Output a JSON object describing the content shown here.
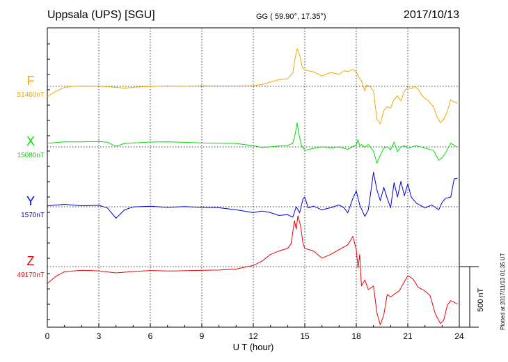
{
  "header": {
    "station": "Uppsala (UPS)  [SGU]",
    "coords": "GG ( 59.90°,  17.35°)",
    "date": "2017/10/13"
  },
  "footer": {
    "plotted": "Plotted at 2017/11/13 01:35 UT"
  },
  "chart_data": {
    "type": "line",
    "xlabel": "U T (hour)",
    "xlim": [
      0,
      24
    ],
    "xticks": [
      "0",
      "3",
      "6",
      "9",
      "12",
      "15",
      "18",
      "21",
      "24"
    ],
    "scale_bar": {
      "label": "500 nT",
      "value_nT": 500
    },
    "grid": true,
    "series": [
      {
        "name": "F",
        "baseline_label": "51460nT",
        "baseline_nT": 51460,
        "color": "#f0a800",
        "points": [
          [
            0,
            51375
          ],
          [
            0.5,
            51420
          ],
          [
            1,
            51450
          ],
          [
            1.5,
            51460
          ],
          [
            2,
            51462
          ],
          [
            3,
            51462
          ],
          [
            4,
            51452
          ],
          [
            4.5,
            51445
          ],
          [
            5,
            51452
          ],
          [
            6,
            51458
          ],
          [
            7,
            51463
          ],
          [
            8,
            51460
          ],
          [
            9,
            51465
          ],
          [
            10,
            51463
          ],
          [
            11,
            51463
          ],
          [
            12,
            51465
          ],
          [
            12.5,
            51475
          ],
          [
            13,
            51495
          ],
          [
            13.5,
            51515
          ],
          [
            14,
            51522
          ],
          [
            14.3,
            51570
          ],
          [
            14.45,
            51700
          ],
          [
            14.55,
            51770
          ],
          [
            14.7,
            51720
          ],
          [
            14.85,
            51620
          ],
          [
            15,
            51595
          ],
          [
            15.5,
            51580
          ],
          [
            16,
            51545
          ],
          [
            16.5,
            51575
          ],
          [
            17,
            51560
          ],
          [
            17.3,
            51590
          ],
          [
            17.5,
            51580
          ],
          [
            17.8,
            51600
          ],
          [
            18,
            51580
          ],
          [
            18.1,
            51550
          ],
          [
            18.2,
            51520
          ],
          [
            18.3,
            51505
          ],
          [
            18.5,
            51420
          ],
          [
            18.6,
            51470
          ],
          [
            18.8,
            51460
          ],
          [
            19,
            51420
          ],
          [
            19.2,
            51190
          ],
          [
            19.4,
            51150
          ],
          [
            19.6,
            51260
          ],
          [
            19.8,
            51290
          ],
          [
            20,
            51280
          ],
          [
            20.2,
            51350
          ],
          [
            20.4,
            51380
          ],
          [
            20.6,
            51340
          ],
          [
            20.8,
            51420
          ],
          [
            21,
            51450
          ],
          [
            21.2,
            51440
          ],
          [
            21.4,
            51460
          ],
          [
            21.6,
            51435
          ],
          [
            21.8,
            51390
          ],
          [
            22,
            51360
          ],
          [
            22.2,
            51340
          ],
          [
            22.5,
            51290
          ],
          [
            22.7,
            51210
          ],
          [
            22.9,
            51160
          ],
          [
            23.1,
            51190
          ],
          [
            23.3,
            51250
          ],
          [
            23.5,
            51350
          ],
          [
            23.7,
            51330
          ],
          [
            23.9,
            51320
          ]
        ]
      },
      {
        "name": "X",
        "baseline_label": "15080nT",
        "baseline_nT": 15080,
        "color": "#00dd00",
        "points": [
          [
            0,
            15110
          ],
          [
            1,
            15122
          ],
          [
            2,
            15122
          ],
          [
            3,
            15125
          ],
          [
            3.5,
            15118
          ],
          [
            4,
            15085
          ],
          [
            4.5,
            15108
          ],
          [
            5,
            15112
          ],
          [
            6,
            15120
          ],
          [
            7,
            15122
          ],
          [
            8,
            15118
          ],
          [
            9,
            15112
          ],
          [
            10,
            15110
          ],
          [
            11,
            15108
          ],
          [
            12,
            15090
          ],
          [
            12.5,
            15075
          ],
          [
            13,
            15080
          ],
          [
            13.5,
            15088
          ],
          [
            14,
            15092
          ],
          [
            14.3,
            15110
          ],
          [
            14.45,
            15190
          ],
          [
            14.55,
            15280
          ],
          [
            14.65,
            15190
          ],
          [
            14.8,
            15090
          ],
          [
            15,
            15050
          ],
          [
            15.5,
            15068
          ],
          [
            16,
            15080
          ],
          [
            16.5,
            15072
          ],
          [
            17,
            15080
          ],
          [
            17.5,
            15060
          ],
          [
            18,
            15098
          ],
          [
            18.1,
            15140
          ],
          [
            18.2,
            15090
          ],
          [
            18.3,
            15100
          ],
          [
            18.5,
            15075
          ],
          [
            18.7,
            15100
          ],
          [
            19,
            15045
          ],
          [
            19.2,
            14945
          ],
          [
            19.4,
            15010
          ],
          [
            19.6,
            15070
          ],
          [
            19.8,
            15080
          ],
          [
            20,
            15055
          ],
          [
            20.2,
            15120
          ],
          [
            20.4,
            15040
          ],
          [
            20.6,
            15080
          ],
          [
            20.8,
            15090
          ],
          [
            21,
            15070
          ],
          [
            21.5,
            15090
          ],
          [
            22,
            15070
          ],
          [
            22.5,
            15050
          ],
          [
            22.8,
            14970
          ],
          [
            23,
            14990
          ],
          [
            23.2,
            15030
          ],
          [
            23.5,
            15110
          ],
          [
            23.8,
            15085
          ],
          [
            23.9,
            15075
          ]
        ]
      },
      {
        "name": "Y",
        "baseline_label": "1570nT",
        "baseline_nT": 1570,
        "color": "#0000dd",
        "points": [
          [
            0,
            1578
          ],
          [
            1,
            1590
          ],
          [
            2,
            1578
          ],
          [
            3,
            1582
          ],
          [
            3.5,
            1560
          ],
          [
            4,
            1475
          ],
          [
            4.5,
            1545
          ],
          [
            5,
            1568
          ],
          [
            6,
            1574
          ],
          [
            7,
            1565
          ],
          [
            8,
            1572
          ],
          [
            9,
            1565
          ],
          [
            10,
            1562
          ],
          [
            11,
            1545
          ],
          [
            12,
            1522
          ],
          [
            12.5,
            1535
          ],
          [
            13,
            1522
          ],
          [
            13.5,
            1498
          ],
          [
            14,
            1505
          ],
          [
            14.3,
            1484
          ],
          [
            14.5,
            1570
          ],
          [
            14.7,
            1520
          ],
          [
            14.9,
            1638
          ],
          [
            15,
            1650
          ],
          [
            15.2,
            1560
          ],
          [
            15.5,
            1575
          ],
          [
            16,
            1545
          ],
          [
            16.5,
            1562
          ],
          [
            17,
            1585
          ],
          [
            17.3,
            1560
          ],
          [
            17.5,
            1520
          ],
          [
            17.8,
            1640
          ],
          [
            18,
            1700
          ],
          [
            18.2,
            1585
          ],
          [
            18.5,
            1490
          ],
          [
            18.7,
            1545
          ],
          [
            19,
            1855
          ],
          [
            19.2,
            1710
          ],
          [
            19.4,
            1620
          ],
          [
            19.6,
            1730
          ],
          [
            19.8,
            1640
          ],
          [
            20,
            1560
          ],
          [
            20.2,
            1770
          ],
          [
            20.4,
            1650
          ],
          [
            20.6,
            1780
          ],
          [
            20.8,
            1660
          ],
          [
            21,
            1760
          ],
          [
            21.2,
            1650
          ],
          [
            21.5,
            1600
          ],
          [
            22,
            1560
          ],
          [
            22.4,
            1585
          ],
          [
            22.8,
            1545
          ],
          [
            23,
            1605
          ],
          [
            23.2,
            1640
          ],
          [
            23.5,
            1650
          ],
          [
            23.7,
            1800
          ],
          [
            23.9,
            1805
          ]
        ]
      },
      {
        "name": "Z",
        "baseline_label": "49170nT",
        "baseline_nT": 49170,
        "color": "#ee0000",
        "points": [
          [
            0,
            49030
          ],
          [
            0.5,
            49090
          ],
          [
            1,
            49128
          ],
          [
            2,
            49140
          ],
          [
            3,
            49135
          ],
          [
            4,
            49118
          ],
          [
            5,
            49130
          ],
          [
            6,
            49138
          ],
          [
            7,
            49134
          ],
          [
            8,
            49136
          ],
          [
            9,
            49140
          ],
          [
            10,
            49142
          ],
          [
            11,
            49150
          ],
          [
            12,
            49180
          ],
          [
            12.5,
            49215
          ],
          [
            13,
            49270
          ],
          [
            13.5,
            49300
          ],
          [
            14,
            49320
          ],
          [
            14.2,
            49360
          ],
          [
            14.4,
            49550
          ],
          [
            14.5,
            49480
          ],
          [
            14.6,
            49590
          ],
          [
            14.75,
            49510
          ],
          [
            14.9,
            49360
          ],
          [
            15,
            49320
          ],
          [
            15.5,
            49300
          ],
          [
            16,
            49240
          ],
          [
            16.5,
            49270
          ],
          [
            17,
            49310
          ],
          [
            17.5,
            49350
          ],
          [
            17.8,
            49420
          ],
          [
            18,
            49310
          ],
          [
            18.1,
            49160
          ],
          [
            18.2,
            49270
          ],
          [
            18.3,
            49010
          ],
          [
            18.5,
            49060
          ],
          [
            18.7,
            48980
          ],
          [
            19,
            49010
          ],
          [
            19.2,
            48790
          ],
          [
            19.4,
            48690
          ],
          [
            19.6,
            48770
          ],
          [
            19.8,
            48940
          ],
          [
            20,
            48920
          ],
          [
            20.5,
            48970
          ],
          [
            21,
            49095
          ],
          [
            21.3,
            49070
          ],
          [
            21.6,
            49000
          ],
          [
            22,
            48970
          ],
          [
            22.3,
            48930
          ],
          [
            22.6,
            48780
          ],
          [
            22.9,
            48700
          ],
          [
            23.1,
            48730
          ],
          [
            23.3,
            48850
          ],
          [
            23.5,
            48890
          ],
          [
            23.7,
            48875
          ],
          [
            23.9,
            48860
          ]
        ]
      }
    ]
  }
}
